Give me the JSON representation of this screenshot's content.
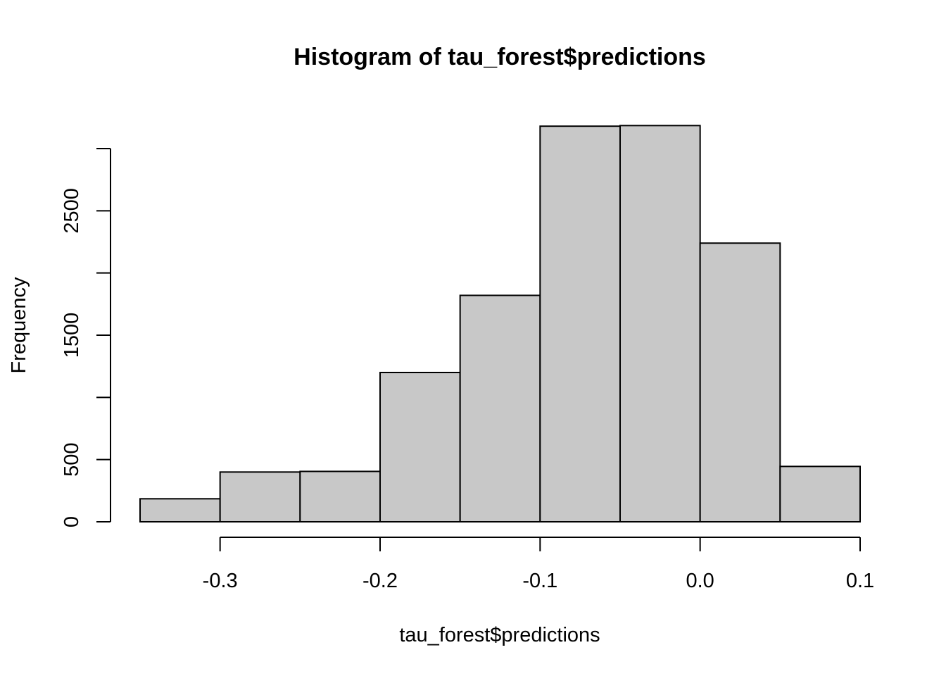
{
  "chart_data": {
    "type": "bar",
    "title": "Histogram of tau_forest$predictions",
    "xlabel": "tau_forest$predictions",
    "ylabel": "Frequency",
    "bins": [
      {
        "x0": -0.35,
        "x1": -0.3,
        "value": 185
      },
      {
        "x0": -0.3,
        "x1": -0.25,
        "value": 400
      },
      {
        "x0": -0.25,
        "x1": -0.2,
        "value": 405
      },
      {
        "x0": -0.2,
        "x1": -0.15,
        "value": 1200
      },
      {
        "x0": -0.15,
        "x1": -0.1,
        "value": 1820
      },
      {
        "x0": -0.1,
        "x1": -0.05,
        "value": 3180
      },
      {
        "x0": -0.05,
        "x1": 0.0,
        "value": 3185
      },
      {
        "x0": 0.0,
        "x1": 0.05,
        "value": 2240
      },
      {
        "x0": 0.05,
        "x1": 0.1,
        "value": 445
      }
    ],
    "xlim": [
      -0.35,
      0.1
    ],
    "ylim": [
      0,
      3000
    ],
    "x_ticks": [
      {
        "value": -0.3,
        "label": "-0.3"
      },
      {
        "value": -0.2,
        "label": "-0.2"
      },
      {
        "value": -0.1,
        "label": "-0.1"
      },
      {
        "value": 0.0,
        "label": "0.0"
      },
      {
        "value": 0.1,
        "label": "0.1"
      }
    ],
    "y_ticks": [
      {
        "value": 0,
        "label": "0"
      },
      {
        "value": 500,
        "label": "500"
      },
      {
        "value": 1000,
        "label": ""
      },
      {
        "value": 1500,
        "label": "1500"
      },
      {
        "value": 2000,
        "label": ""
      },
      {
        "value": 2500,
        "label": "2500"
      },
      {
        "value": 3000,
        "label": ""
      }
    ],
    "bar_color": "#c8c8c8",
    "border_color": "#000000",
    "grid": false,
    "legend": "none"
  }
}
